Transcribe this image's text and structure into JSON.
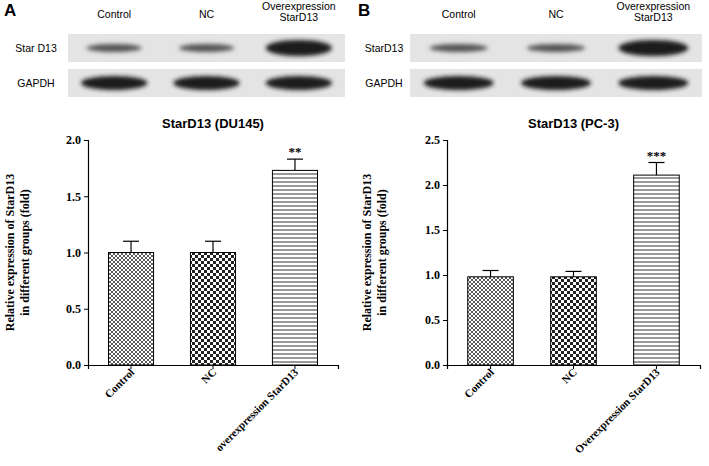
{
  "chart_data": [
    {
      "type": "bar",
      "panel": "A",
      "title": "StarD13 (DU145)",
      "y_label": [
        "Relative expression of StarD13",
        "in different groups (fold)"
      ],
      "categories": [
        "Control",
        "NC",
        "overexpression StarD13"
      ],
      "values": [
        1.0,
        1.0,
        1.73
      ],
      "errors": [
        0.1,
        0.1,
        0.1
      ],
      "annotations": [
        {
          "text": "**",
          "index": 2
        }
      ],
      "ylim": [
        0,
        2.0
      ],
      "yticks": [
        {
          "value": 0,
          "label": "0.0"
        },
        0.5,
        {
          "value": 1,
          "label": "1.0"
        },
        1.5,
        {
          "value": 2,
          "label": "2.0"
        }
      ]
    },
    {
      "type": "bar",
      "panel": "B",
      "title": "StarD13 (PC-3)",
      "y_label": [
        "Relative expression of  StarD13",
        "in different groups (fold)"
      ],
      "categories": [
        "Control",
        "NC",
        "Overexpression StarD13"
      ],
      "values": [
        0.98,
        0.98,
        2.11
      ],
      "errors": [
        0.07,
        0.06,
        0.14
      ],
      "annotations": [
        {
          "text": "***",
          "index": 2
        }
      ],
      "ylim": [
        0,
        2.5
      ],
      "yticks": [
        {
          "value": 0,
          "label": "0.0"
        },
        0.5,
        {
          "value": 1,
          "label": "1.0"
        },
        1.5,
        {
          "value": 2,
          "label": "2.0"
        },
        2.5
      ]
    }
  ],
  "blots": [
    {
      "lanes": [
        [
          "Control"
        ],
        [
          "NC"
        ],
        [
          "Overexpression",
          "StarD13"
        ]
      ],
      "rows": [
        "Star D13",
        "GAPDH"
      ]
    },
    {
      "lanes": [
        [
          "Control"
        ],
        [
          "NC"
        ],
        [
          "Overexpression",
          "StarD13"
        ]
      ],
      "rows": [
        "StarD13",
        "GAPDH"
      ]
    }
  ]
}
